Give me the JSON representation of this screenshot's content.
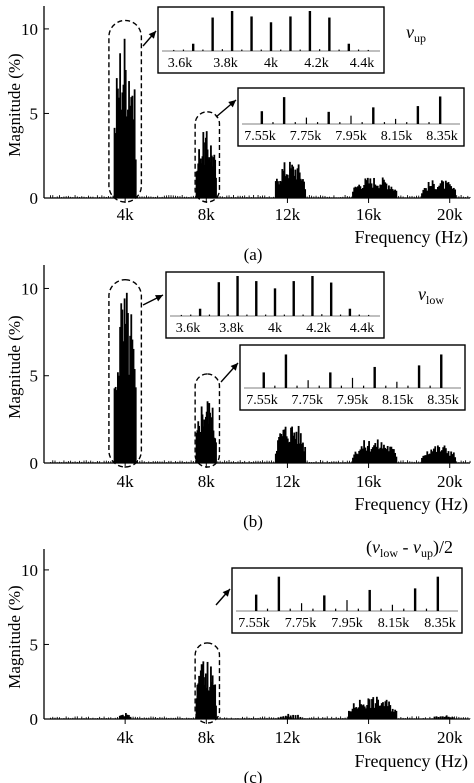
{
  "chart_data": [
    {
      "type": "bar",
      "subplot_label": "(a)",
      "signal_label": {
        "base": "v",
        "sub": "up"
      },
      "ylabel": "Magnitude (%)",
      "xlabel": "Frequency (Hz)",
      "x_unit": "Hz",
      "xlim": [
        0,
        21000
      ],
      "ylim": [
        0,
        11
      ],
      "x_ticks": [
        {
          "v": 4000,
          "t": "4k"
        },
        {
          "v": 8000,
          "t": "8k"
        },
        {
          "v": 12000,
          "t": "12k"
        },
        {
          "v": 16000,
          "t": "16k"
        },
        {
          "v": 20000,
          "t": "20k"
        }
      ],
      "y_ticks": [
        {
          "v": 0,
          "t": "0"
        },
        {
          "v": 5,
          "t": "5"
        },
        {
          "v": 10,
          "t": "10"
        }
      ],
      "highlights": [
        {
          "x_range": [
            3200,
            4800
          ],
          "y_top": 10.5
        },
        {
          "x_range": [
            7450,
            8650
          ],
          "y_top": 5.1
        }
      ],
      "bands": [
        {
          "x_range": [
            3450,
            4550
          ],
          "count": 20,
          "peak": 10.3
        },
        {
          "x_range": [
            7500,
            8500
          ],
          "count": 24,
          "peak": 4.0
        },
        {
          "x_range": [
            11400,
            12900
          ],
          "count": 28,
          "peak": 2.3
        },
        {
          "x_range": [
            15200,
            17400
          ],
          "count": 36,
          "peak": 1.3
        },
        {
          "x_range": [
            18600,
            20300
          ],
          "count": 26,
          "peak": 1.1
        }
      ],
      "noise_floor": 0.12,
      "insets": [
        {
          "x_ticks": [
            "3.6k",
            "3.8k",
            "4k",
            "4.2k",
            "4.4k"
          ],
          "xlim": [
            3450,
            4550
          ],
          "ylim": [
            0,
            11
          ],
          "values_x": [
            3500,
            3550,
            3600,
            3650,
            3700,
            3750,
            3800,
            3850,
            3900,
            3950,
            4000,
            4050,
            4100,
            4150,
            4200,
            4250,
            4300,
            4350,
            4400,
            4450,
            4500
          ],
          "values_y": [
            0.3,
            0.4,
            2.0,
            0.4,
            9.2,
            0.5,
            11.0,
            0.4,
            9.5,
            0.4,
            7.9,
            0.4,
            9.5,
            0.4,
            11.0,
            0.5,
            9.2,
            0.4,
            2.0,
            0.4,
            0.3
          ]
        },
        {
          "x_ticks": [
            "7.55k",
            "7.75k",
            "7.95k",
            "8.15k",
            "8.35k"
          ],
          "xlim": [
            7470,
            8430
          ],
          "ylim": [
            0,
            5
          ],
          "values_x": [
            7550,
            7600,
            7650,
            7700,
            7750,
            7800,
            7850,
            7900,
            7950,
            8000,
            8050,
            8100,
            8150,
            8200,
            8250,
            8300,
            8350
          ],
          "values_y": [
            2.0,
            0.3,
            4.2,
            0.3,
            1.0,
            0.3,
            1.9,
            0.3,
            1.3,
            0.3,
            2.6,
            0.3,
            0.8,
            0.3,
            2.8,
            0.3,
            4.3
          ]
        }
      ]
    },
    {
      "type": "bar",
      "subplot_label": "(b)",
      "signal_label": {
        "base": "v",
        "sub": "low"
      },
      "ylabel": "Magnitude (%)",
      "xlabel": "Frequency (Hz)",
      "x_unit": "Hz",
      "xlim": [
        0,
        21000
      ],
      "ylim": [
        0,
        11
      ],
      "x_ticks": [
        {
          "v": 4000,
          "t": "4k"
        },
        {
          "v": 8000,
          "t": "8k"
        },
        {
          "v": 12000,
          "t": "12k"
        },
        {
          "v": 16000,
          "t": "16k"
        },
        {
          "v": 20000,
          "t": "20k"
        }
      ],
      "y_ticks": [
        {
          "v": 0,
          "t": "0"
        },
        {
          "v": 5,
          "t": "5"
        },
        {
          "v": 10,
          "t": "10"
        }
      ],
      "highlights": [
        {
          "x_range": [
            3200,
            4800
          ],
          "y_top": 10.5
        },
        {
          "x_range": [
            7450,
            8650
          ],
          "y_top": 5.1
        }
      ],
      "bands": [
        {
          "x_range": [
            3450,
            4550
          ],
          "count": 20,
          "peak": 10.2
        },
        {
          "x_range": [
            7500,
            8500
          ],
          "count": 24,
          "peak": 3.9
        },
        {
          "x_range": [
            11400,
            12900
          ],
          "count": 28,
          "peak": 2.4
        },
        {
          "x_range": [
            15200,
            17400
          ],
          "count": 36,
          "peak": 1.4
        },
        {
          "x_range": [
            18600,
            20300
          ],
          "count": 26,
          "peak": 1.1
        }
      ],
      "noise_floor": 0.12,
      "insets": [
        {
          "x_ticks": [
            "3.6k",
            "3.8k",
            "4k",
            "4.2k",
            "4.4k"
          ],
          "xlim": [
            3450,
            4550
          ],
          "ylim": [
            0,
            11
          ],
          "values_x": [
            3500,
            3550,
            3600,
            3650,
            3700,
            3750,
            3800,
            3850,
            3900,
            3950,
            4000,
            4050,
            4100,
            4150,
            4200,
            4250,
            4300,
            4350,
            4400,
            4450,
            4500
          ],
          "values_y": [
            0.3,
            0.4,
            2.0,
            0.4,
            9.3,
            0.5,
            11.0,
            0.4,
            9.6,
            0.4,
            7.6,
            0.4,
            9.6,
            0.4,
            11.0,
            0.5,
            9.2,
            0.4,
            2.0,
            0.4,
            0.3
          ]
        },
        {
          "x_ticks": [
            "7.55k",
            "7.75k",
            "7.95k",
            "8.15k",
            "8.35k"
          ],
          "xlim": [
            7470,
            8430
          ],
          "ylim": [
            0,
            5
          ],
          "values_x": [
            7550,
            7600,
            7650,
            7700,
            7750,
            7800,
            7850,
            7900,
            7950,
            8000,
            8050,
            8100,
            8150,
            8200,
            8250,
            8300,
            8350
          ],
          "values_y": [
            2.0,
            0.3,
            4.3,
            0.3,
            1.0,
            0.3,
            2.0,
            0.3,
            1.3,
            0.3,
            2.7,
            0.3,
            0.8,
            0.3,
            2.9,
            0.3,
            4.3
          ]
        }
      ]
    },
    {
      "type": "bar",
      "subplot_label": "(c)",
      "signal_label": {
        "base": "(v",
        "sub": "low",
        "mid": " - v",
        "sub2": "up",
        "tail": ")/2"
      },
      "ylabel": "Magnitude (%)",
      "xlabel": "Frequency (Hz)",
      "x_unit": "Hz",
      "xlim": [
        0,
        21000
      ],
      "ylim": [
        0,
        11
      ],
      "x_ticks": [
        {
          "v": 4000,
          "t": "4k"
        },
        {
          "v": 8000,
          "t": "8k"
        },
        {
          "v": 12000,
          "t": "12k"
        },
        {
          "v": 16000,
          "t": "16k"
        },
        {
          "v": 20000,
          "t": "20k"
        }
      ],
      "y_ticks": [
        {
          "v": 0,
          "t": "0"
        },
        {
          "v": 5,
          "t": "5"
        },
        {
          "v": 10,
          "t": "10"
        }
      ],
      "highlights": [
        {
          "x_range": [
            7450,
            8650
          ],
          "y_top": 5.1
        }
      ],
      "bands": [
        {
          "x_range": [
            3700,
            4300
          ],
          "count": 8,
          "peak": 0.4
        },
        {
          "x_range": [
            7500,
            8500
          ],
          "count": 24,
          "peak": 4.1
        },
        {
          "x_range": [
            11500,
            12700
          ],
          "count": 10,
          "peak": 0.35
        },
        {
          "x_range": [
            15000,
            17400
          ],
          "count": 40,
          "peak": 1.5
        },
        {
          "x_range": [
            19200,
            20200
          ],
          "count": 10,
          "peak": 0.3
        }
      ],
      "noise_floor": 0.12,
      "insets": [
        {
          "x_ticks": [
            "7.55k",
            "7.75k",
            "7.95k",
            "8.15k",
            "8.35k"
          ],
          "xlim": [
            7470,
            8430
          ],
          "ylim": [
            0,
            5
          ],
          "values_x": [
            7550,
            7600,
            7650,
            7700,
            7750,
            7800,
            7850,
            7900,
            7950,
            8000,
            8050,
            8100,
            8150,
            8200,
            8250,
            8300,
            8350
          ],
          "values_y": [
            2.1,
            0.3,
            4.4,
            0.3,
            1.0,
            0.3,
            2.0,
            0.3,
            1.4,
            0.3,
            2.7,
            0.3,
            0.8,
            0.3,
            2.9,
            0.3,
            4.4
          ]
        }
      ]
    }
  ]
}
